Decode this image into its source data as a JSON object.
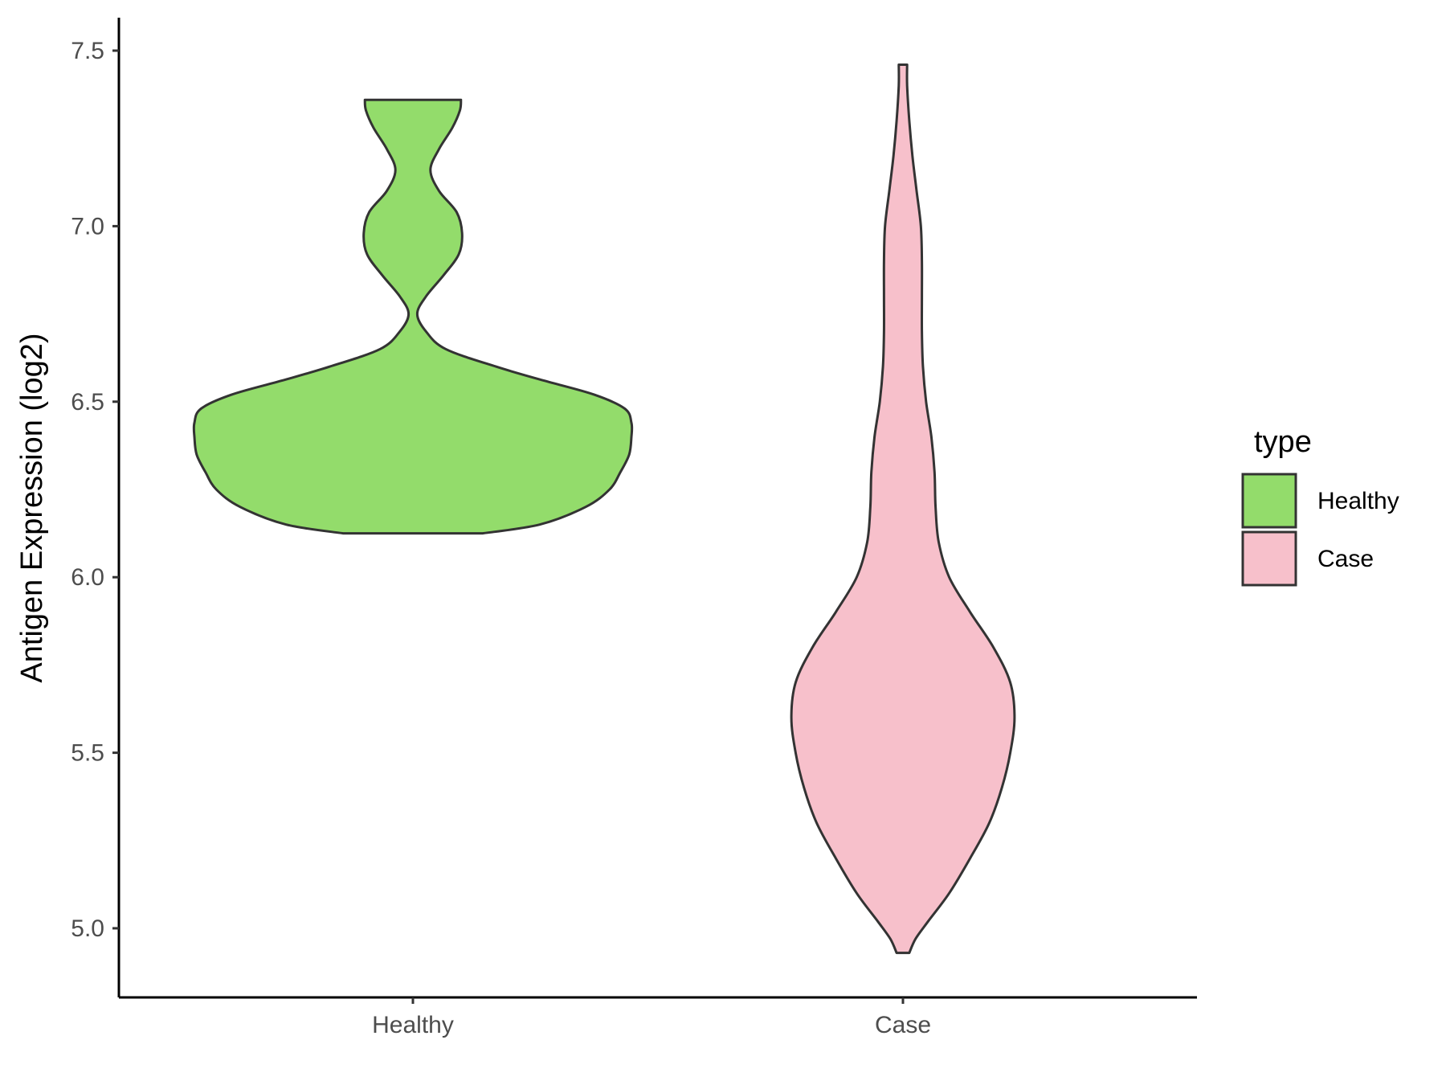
{
  "chart_data": {
    "type": "violin",
    "title": "",
    "xlabel": "",
    "ylabel": "Antigen Expression (log2)",
    "ylim": [
      4.8,
      7.59
    ],
    "yticks": [
      "5.0",
      "5.5",
      "6.0",
      "6.5",
      "7.0",
      "7.5"
    ],
    "categories": [
      "Healthy",
      "Case"
    ],
    "legend": {
      "title": "type",
      "position": "right",
      "entries": [
        "Healthy",
        "Case"
      ]
    },
    "grid": false,
    "series": [
      {
        "name": "Healthy",
        "color": "#93dc6b",
        "min": 6.125,
        "max": 7.36,
        "density": [
          [
            6.125,
            0.32
          ],
          [
            6.15,
            0.58
          ],
          [
            6.2,
            0.79
          ],
          [
            6.25,
            0.9
          ],
          [
            6.3,
            0.95
          ],
          [
            6.35,
            0.99
          ],
          [
            6.4,
            1.0
          ],
          [
            6.44,
            1.0
          ],
          [
            6.48,
            0.97
          ],
          [
            6.52,
            0.83
          ],
          [
            6.56,
            0.6
          ],
          [
            6.6,
            0.38
          ],
          [
            6.65,
            0.15
          ],
          [
            6.7,
            0.06
          ],
          [
            6.75,
            0.02
          ],
          [
            6.8,
            0.06
          ],
          [
            6.86,
            0.14
          ],
          [
            6.92,
            0.21
          ],
          [
            6.98,
            0.225
          ],
          [
            7.04,
            0.2
          ],
          [
            7.1,
            0.12
          ],
          [
            7.16,
            0.08
          ],
          [
            7.22,
            0.12
          ],
          [
            7.28,
            0.18
          ],
          [
            7.33,
            0.215
          ],
          [
            7.36,
            0.22
          ]
        ]
      },
      {
        "name": "Case",
        "color": "#f7c0cb",
        "min": 4.93,
        "max": 7.46,
        "density": [
          [
            4.93,
            0.03
          ],
          [
            4.97,
            0.06
          ],
          [
            5.02,
            0.12
          ],
          [
            5.1,
            0.22
          ],
          [
            5.2,
            0.32
          ],
          [
            5.3,
            0.41
          ],
          [
            5.4,
            0.47
          ],
          [
            5.5,
            0.51
          ],
          [
            5.6,
            0.53
          ],
          [
            5.7,
            0.51
          ],
          [
            5.8,
            0.43
          ],
          [
            5.9,
            0.32
          ],
          [
            6.0,
            0.22
          ],
          [
            6.1,
            0.17
          ],
          [
            6.2,
            0.155
          ],
          [
            6.3,
            0.15
          ],
          [
            6.4,
            0.135
          ],
          [
            6.5,
            0.11
          ],
          [
            6.6,
            0.095
          ],
          [
            6.7,
            0.09
          ],
          [
            6.8,
            0.09
          ],
          [
            6.9,
            0.09
          ],
          [
            7.0,
            0.085
          ],
          [
            7.1,
            0.065
          ],
          [
            7.2,
            0.045
          ],
          [
            7.3,
            0.03
          ],
          [
            7.4,
            0.02
          ],
          [
            7.46,
            0.02
          ]
        ]
      }
    ]
  }
}
